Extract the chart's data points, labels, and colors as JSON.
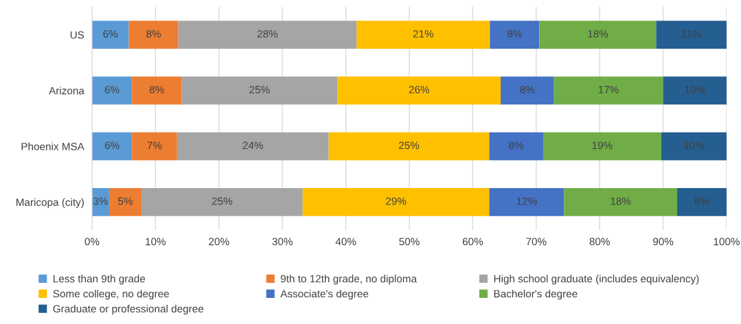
{
  "chart_data": {
    "type": "bar",
    "orientation": "horizontal",
    "stacked": true,
    "categories": [
      "US",
      "Arizona",
      "Phoenix MSA",
      "Maricopa (city)"
    ],
    "series": [
      {
        "name": "Less than 9th grade",
        "color": "#5b9bd5",
        "values": [
          5.8,
          6.3,
          6.3,
          2.7
        ],
        "value_labels": [
          "6%",
          "6%",
          "6%",
          "3%"
        ]
      },
      {
        "name": "9th to 12th grade, no diploma",
        "color": "#ed7d31",
        "values": [
          7.8,
          7.8,
          7.1,
          5.1
        ],
        "value_labels": [
          "8%",
          "8%",
          "7%",
          "5%"
        ]
      },
      {
        "name": "High school graduate (includes equivalency)",
        "color": "#a5a5a5",
        "values": [
          28.1,
          24.6,
          23.9,
          25.4
        ],
        "value_labels": [
          "28%",
          "25%",
          "24%",
          "25%"
        ]
      },
      {
        "name": "Some college, no degree",
        "color": "#ffc000",
        "values": [
          21.0,
          25.7,
          25.3,
          29.4
        ],
        "value_labels": [
          "21%",
          "26%",
          "25%",
          "29%"
        ]
      },
      {
        "name": "Associate's degree",
        "color": "#4472c4",
        "values": [
          7.8,
          8.4,
          8.5,
          11.8
        ],
        "value_labels": [
          "8%",
          "8%",
          "8%",
          "12%"
        ]
      },
      {
        "name": "Bachelor's degree",
        "color": "#70ad47",
        "values": [
          18.4,
          17.2,
          18.6,
          17.8
        ],
        "value_labels": [
          "18%",
          "17%",
          "19%",
          "18%"
        ]
      },
      {
        "name": "Graduate or professional degree",
        "color": "#255e91",
        "values": [
          11.1,
          10.0,
          10.3,
          7.8
        ],
        "value_labels": [
          "11%",
          "10%",
          "10%",
          "8%"
        ]
      }
    ],
    "xlim": [
      0,
      100
    ],
    "xticks": [
      {
        "value": 0,
        "label": "0%"
      },
      {
        "value": 10,
        "label": "10%"
      },
      {
        "value": 20,
        "label": "20%"
      },
      {
        "value": 30,
        "label": "30%"
      },
      {
        "value": 40,
        "label": "40%"
      },
      {
        "value": 50,
        "label": "50%"
      },
      {
        "value": 60,
        "label": "60%"
      },
      {
        "value": 70,
        "label": "70%"
      },
      {
        "value": 80,
        "label": "80%"
      },
      {
        "value": 90,
        "label": "90%"
      },
      {
        "value": 100,
        "label": "100%"
      }
    ],
    "grid": "x",
    "legend": "bottom"
  }
}
